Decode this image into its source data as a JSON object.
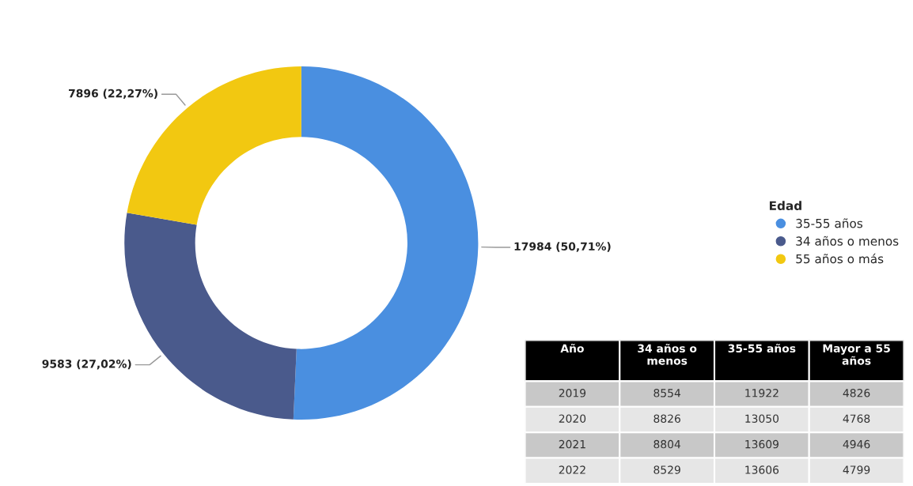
{
  "chart_data": [
    {
      "type": "donut",
      "legend_title": "Edad",
      "legend": "right",
      "categories": [
        "35-55 años",
        "34 años o menos",
        "55 años o más"
      ],
      "values": [
        17984,
        9583,
        7896
      ],
      "value_labels": [
        "17984 (50,71%)",
        "9583 (27,02%)",
        "7896 (22,27%)"
      ],
      "colors": [
        "#4a8fe0",
        "#4a5a8c",
        "#f2c811"
      ]
    },
    {
      "type": "heatmap",
      "ylabel": "Año",
      "categories": [
        "34 años o\nmenos",
        "35-55 años",
        "Mayor a 55\naños"
      ],
      "y_categories": [
        "2019",
        "2020",
        "2021",
        "2022"
      ],
      "cells": [
        [
          8554,
          11922,
          4826
        ],
        [
          8826,
          13050,
          4768
        ],
        [
          8804,
          13609,
          4946
        ],
        [
          8529,
          13606,
          4799
        ]
      ],
      "data_labels": true
    }
  ]
}
